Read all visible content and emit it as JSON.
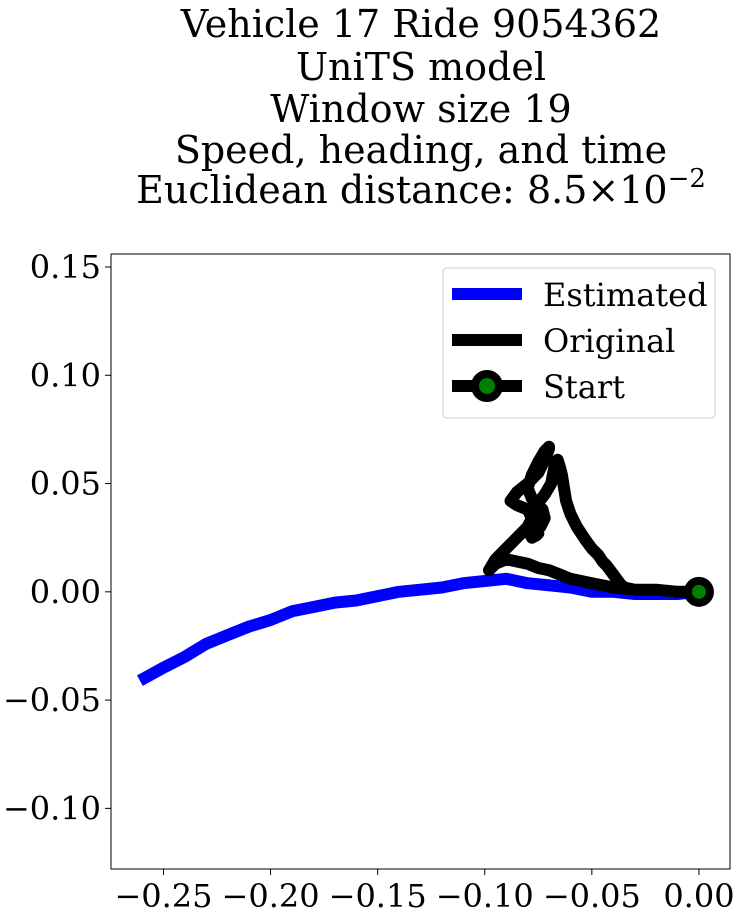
{
  "chart_data": {
    "type": "line",
    "title_lines": [
      "Vehicle 17 Ride 9054362",
      "UniTS model",
      "Window size 19",
      "Speed, heading, and time",
      "Euclidean distance: "
    ],
    "title_math": {
      "mantissa": "8.5",
      "times": "×",
      "base": "10",
      "exponent": "−2"
    },
    "xlim": [
      -0.2745,
      0.0145
    ],
    "ylim": [
      -0.128,
      0.156
    ],
    "xticks": [
      -0.25,
      -0.2,
      -0.15,
      -0.1,
      -0.05,
      0.0
    ],
    "xtick_labels": [
      "−0.25",
      "−0.20",
      "−0.15",
      "−0.10",
      "−0.05",
      "0.00"
    ],
    "yticks": [
      -0.1,
      -0.05,
      0.0,
      0.05,
      0.1,
      0.15
    ],
    "ytick_labels": [
      "−0.10",
      "−0.05",
      "0.00",
      "0.05",
      "0.10",
      "0.15"
    ],
    "legend_position": "upper right",
    "grid": false,
    "series": [
      {
        "name": "Estimated",
        "color": "#0000ff",
        "x": [
          -0.261,
          -0.25,
          -0.24,
          -0.23,
          -0.22,
          -0.21,
          -0.2,
          -0.19,
          -0.18,
          -0.17,
          -0.16,
          -0.15,
          -0.14,
          -0.13,
          -0.12,
          -0.11,
          -0.1,
          -0.09,
          -0.08,
          -0.07,
          -0.06,
          -0.05,
          -0.04,
          -0.03,
          -0.02,
          -0.01,
          0.0
        ],
        "y": [
          -0.041,
          -0.035,
          -0.03,
          -0.024,
          -0.02,
          -0.016,
          -0.013,
          -0.009,
          -0.007,
          -0.005,
          -0.004,
          -0.002,
          0.0,
          0.001,
          0.002,
          0.004,
          0.005,
          0.006,
          0.004,
          0.003,
          0.002,
          0.0,
          0.0,
          -0.001,
          -0.001,
          -0.001,
          0.0
        ]
      },
      {
        "name": "Original",
        "color": "#000000",
        "x": [
          0.0,
          -0.01,
          -0.02,
          -0.03,
          -0.04,
          -0.05,
          -0.06,
          -0.065,
          -0.07,
          -0.075,
          -0.08,
          -0.085,
          -0.09,
          -0.095,
          -0.098,
          -0.095,
          -0.09,
          -0.085,
          -0.08,
          -0.078,
          -0.08,
          -0.085,
          -0.088,
          -0.085,
          -0.08,
          -0.075,
          -0.072,
          -0.07,
          -0.07,
          -0.072,
          -0.075,
          -0.078,
          -0.08,
          -0.078,
          -0.075,
          -0.073,
          -0.072,
          -0.074,
          -0.077,
          -0.079,
          -0.078,
          -0.076,
          -0.075,
          -0.076,
          -0.078,
          -0.076,
          -0.072,
          -0.069,
          -0.068,
          -0.067,
          -0.066,
          -0.065,
          -0.064,
          -0.063,
          -0.062,
          -0.06,
          -0.057,
          -0.053,
          -0.05,
          -0.047,
          -0.045,
          -0.043,
          -0.04,
          -0.037,
          -0.035,
          -0.03,
          -0.02,
          -0.01,
          0.0
        ],
        "y": [
          0.0,
          0.0,
          0.001,
          0.001,
          0.002,
          0.004,
          0.006,
          0.008,
          0.01,
          0.011,
          0.013,
          0.014,
          0.015,
          0.013,
          0.01,
          0.015,
          0.02,
          0.025,
          0.03,
          0.034,
          0.038,
          0.04,
          0.042,
          0.046,
          0.05,
          0.055,
          0.061,
          0.066,
          0.067,
          0.065,
          0.06,
          0.054,
          0.048,
          0.043,
          0.04,
          0.038,
          0.034,
          0.03,
          0.029,
          0.027,
          0.025,
          0.026,
          0.027,
          0.03,
          0.035,
          0.04,
          0.045,
          0.05,
          0.055,
          0.06,
          0.061,
          0.058,
          0.054,
          0.048,
          0.042,
          0.036,
          0.03,
          0.024,
          0.02,
          0.017,
          0.014,
          0.012,
          0.008,
          0.004,
          0.002,
          0.001,
          0.001,
          0.0,
          0.0
        ]
      }
    ],
    "start": {
      "name": "Start",
      "x": 0.0,
      "y": 0.0,
      "edge_color": "#000000",
      "face_color": "#008000"
    }
  }
}
